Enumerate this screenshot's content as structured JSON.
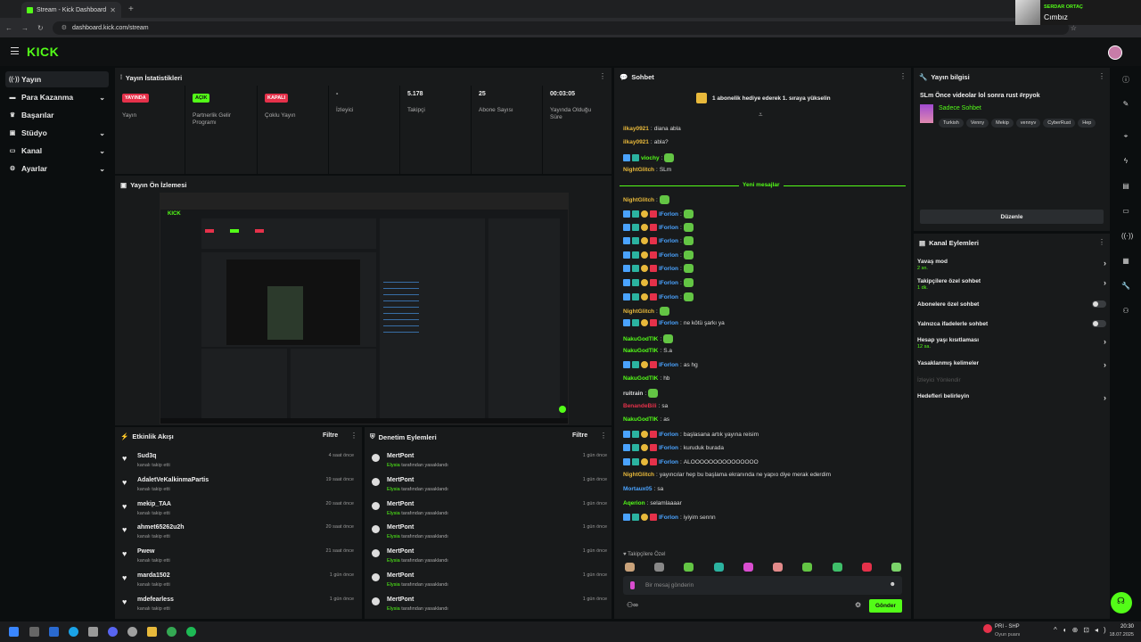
{
  "browser": {
    "tab_title": "Stream - Kick Dashboard",
    "url": "dashboard.kick.com/stream"
  },
  "notification": {
    "user": "SERDAR ORTAÇ",
    "song": "Cımbız"
  },
  "header": {
    "logo": "KICK"
  },
  "sidebar": {
    "items": [
      {
        "label": "Yayın",
        "icon": "broadcast-icon"
      },
      {
        "label": "Para Kazanma",
        "icon": "money-icon"
      },
      {
        "label": "Başarılar",
        "icon": "trophy-icon"
      },
      {
        "label": "Stüdyo",
        "icon": "studio-icon"
      },
      {
        "label": "Kanal",
        "icon": "channel-icon"
      },
      {
        "label": "Ayarlar",
        "icon": "gear-icon"
      }
    ]
  },
  "stats": {
    "title": "Yayın İstatistikleri",
    "items": [
      {
        "value": "YAYINDA",
        "label": "Yayın",
        "badge_color": "#e5314a"
      },
      {
        "value": "AÇIK",
        "label": "Partnerlik Gelir Programı",
        "badge_color": "#53fc18"
      },
      {
        "value": "KAPALI",
        "label": "Çoklu Yayın",
        "badge_color": "#e5314a"
      },
      {
        "value": "-",
        "label": "İzleyici"
      },
      {
        "value": "5.178",
        "label": "Takipçi"
      },
      {
        "value": "25",
        "label": "Abone Sayısı"
      },
      {
        "value": "00:03:05",
        "label": "Yayında Olduğu Süre"
      }
    ]
  },
  "preview": {
    "title": "Yayın Ön İzlemesi"
  },
  "activity": {
    "title": "Etkinlik Akışı",
    "filter": "Filtre",
    "rows": [
      {
        "name": "Sud3q",
        "sub": "kanalı takip etti",
        "time": "4 saat önce"
      },
      {
        "name": "AdaletVeKalkinmaPartis",
        "sub": "kanalı takip etti",
        "time": "19 saat önce"
      },
      {
        "name": "mekip_TAA",
        "sub": "kanalı takip etti",
        "time": "20 saat önce"
      },
      {
        "name": "ahmet65262u2h",
        "sub": "kanalı takip etti",
        "time": "20 saat önce"
      },
      {
        "name": "Pwew",
        "sub": "kanalı takip etti",
        "time": "21 saat önce"
      },
      {
        "name": "marda1502",
        "sub": "kanalı takip etti",
        "time": "1 gün önce"
      },
      {
        "name": "mdefearless",
        "sub": "kanalı takip etti",
        "time": "1 gün önce"
      }
    ]
  },
  "moderation": {
    "title": "Denetim Eylemleri",
    "filter": "Filtre",
    "rows": [
      {
        "name": "MertPont",
        "by": "Elysia",
        "sub": "tarafından yasaklandı",
        "time": "1 gün önce"
      },
      {
        "name": "MertPont",
        "by": "Elysia",
        "sub": "tarafından yasaklandı",
        "time": "1 gün önce"
      },
      {
        "name": "MertPont",
        "by": "Elysia",
        "sub": "tarafından yasaklandı",
        "time": "1 gün önce"
      },
      {
        "name": "MertPont",
        "by": "Elysia",
        "sub": "tarafından yasaklandı",
        "time": "1 gün önce"
      },
      {
        "name": "MertPont",
        "by": "Elysia",
        "sub": "tarafından yasaklandı",
        "time": "1 gün önce"
      },
      {
        "name": "MertPont",
        "by": "Elysia",
        "sub": "tarafından yasaklandı",
        "time": "1 gün önce"
      },
      {
        "name": "MertPont",
        "by": "Elysia",
        "sub": "tarafından yasaklandı",
        "time": "1 gün önce"
      }
    ]
  },
  "chat": {
    "title": "Sohbet",
    "pinned": "1 abonelik hediye ederek 1. sıraya yükselin",
    "new_messages": "Yeni mesajlar",
    "lines": [
      {
        "user": "ilkay0921",
        "color": "#e8b93b",
        "text": "diana abla",
        "badges": 0,
        "emote": false
      },
      {
        "user": "ilkay0921",
        "color": "#e8b93b",
        "text": "abla?",
        "badges": 0,
        "emote": false
      },
      {
        "user": "viochy",
        "color": "#53fc18",
        "text": "",
        "badges": 2,
        "emote": true
      },
      {
        "user": "NightGlitch",
        "color": "#e8b93b",
        "text": "SLm",
        "badges": 0,
        "emote": false
      },
      {
        "user": "NightGlitch",
        "color": "#e8b93b",
        "text": "",
        "badges": 0,
        "emote": true
      },
      {
        "user": "lForlon",
        "color": "#4aa3ff",
        "text": "",
        "badges": 4,
        "emote": true
      },
      {
        "user": "lForlon",
        "color": "#4aa3ff",
        "text": "",
        "badges": 4,
        "emote": true
      },
      {
        "user": "lForlon",
        "color": "#4aa3ff",
        "text": "",
        "badges": 4,
        "emote": true
      },
      {
        "user": "lForlon",
        "color": "#4aa3ff",
        "text": "",
        "badges": 4,
        "emote": true
      },
      {
        "user": "lForlon",
        "color": "#4aa3ff",
        "text": "",
        "badges": 4,
        "emote": true
      },
      {
        "user": "lForlon",
        "color": "#4aa3ff",
        "text": "",
        "badges": 4,
        "emote": true
      },
      {
        "user": "lForlon",
        "color": "#4aa3ff",
        "text": "",
        "badges": 4,
        "emote": true
      },
      {
        "user": "NightGlitch",
        "color": "#e8b93b",
        "text": "",
        "badges": 0,
        "emote": true
      },
      {
        "user": "lForlon",
        "color": "#4aa3ff",
        "text": "ne kötü şarkı ya",
        "badges": 4,
        "emote": false
      },
      {
        "user": "NakuGodTIK",
        "color": "#53fc18",
        "text": "",
        "badges": 0,
        "emote": true
      },
      {
        "user": "NakuGodTIK",
        "color": "#53fc18",
        "text": "S.a",
        "badges": 0,
        "emote": false
      },
      {
        "user": "lForlon",
        "color": "#4aa3ff",
        "text": "as hg",
        "badges": 4,
        "emote": false
      },
      {
        "user": "NakuGodTIK",
        "color": "#53fc18",
        "text": "hb",
        "badges": 0,
        "emote": false
      },
      {
        "user": "ruitrain",
        "color": "#dddddd",
        "text": "",
        "badges": 0,
        "emote": true
      },
      {
        "user": "BenandeBili",
        "color": "#e5314a",
        "text": "sa",
        "badges": 0,
        "emote": false
      },
      {
        "user": "NakuGodTIK",
        "color": "#53fc18",
        "text": "as",
        "badges": 0,
        "emote": false
      },
      {
        "user": "lForlon",
        "color": "#4aa3ff",
        "text": "başlasana artık yayına reisim",
        "badges": 4,
        "emote": false
      },
      {
        "user": "lForlon",
        "color": "#4aa3ff",
        "text": "kuruduk burada",
        "badges": 4,
        "emote": false
      },
      {
        "user": "lForlon",
        "color": "#4aa3ff",
        "text": "ALOOOOOOOOOOOOOOO",
        "badges": 4,
        "emote": false
      },
      {
        "user": "NightGlitch",
        "color": "#e8b93b",
        "text": "yayıncılar hep bu başlama ekranında ne yapıo diye merak ederdim",
        "badges": 0,
        "emote": false
      },
      {
        "user": "Mortaux05",
        "color": "#4aa3ff",
        "text": "sa",
        "badges": 0,
        "emote": false
      },
      {
        "user": "Aqerion",
        "color": "#53fc18",
        "text": "selamlaaaar",
        "badges": 0,
        "emote": false
      },
      {
        "user": "lForlon",
        "color": "#4aa3ff",
        "text": "iyiyim sennn",
        "badges": 4,
        "emote": false
      }
    ],
    "followers_only": "Takipçilere Özel",
    "input_placeholder": "Bir mesaj gönderin",
    "send_label": "Gönder"
  },
  "stream_info": {
    "title": "Yayın bilgisi",
    "stream_title": "SLm Önce videolar lol sonra rust #rpyok",
    "category": "Sadece Sohbet",
    "tags": [
      "Turkish",
      "Venny",
      "Mekip",
      "vennyv",
      "CyberRust",
      "Hep"
    ],
    "edit_label": "Düzenle"
  },
  "channel_actions": {
    "title": "Kanal Eylemleri",
    "items": [
      {
        "label": "Yavaş mod",
        "sub": "2 sn.",
        "control": "arrow"
      },
      {
        "label": "Takipçilere özel sohbet",
        "sub": "1 dk.",
        "control": "arrow"
      },
      {
        "label": "Abonelere özel sohbet",
        "sub": "",
        "control": "toggle"
      },
      {
        "label": "Yalnızca ifadelerle sohbet",
        "sub": "",
        "control": "toggle"
      },
      {
        "label": "Hesap yaşı kısıtlaması",
        "sub": "12 sa.",
        "control": "arrow"
      },
      {
        "label": "Yasaklanmış kelimeler",
        "sub": "",
        "control": "arrow"
      },
      {
        "label": "İzleyici Yönlendir",
        "sub": "",
        "control": "none"
      },
      {
        "label": "Hedefleri belirleyin",
        "sub": "",
        "control": "arrow"
      }
    ]
  },
  "taskbar": {
    "weather": "PRI - SHP",
    "weather_sub": "Oyun puanı",
    "time": "20:30",
    "date": "18.07.2025"
  }
}
